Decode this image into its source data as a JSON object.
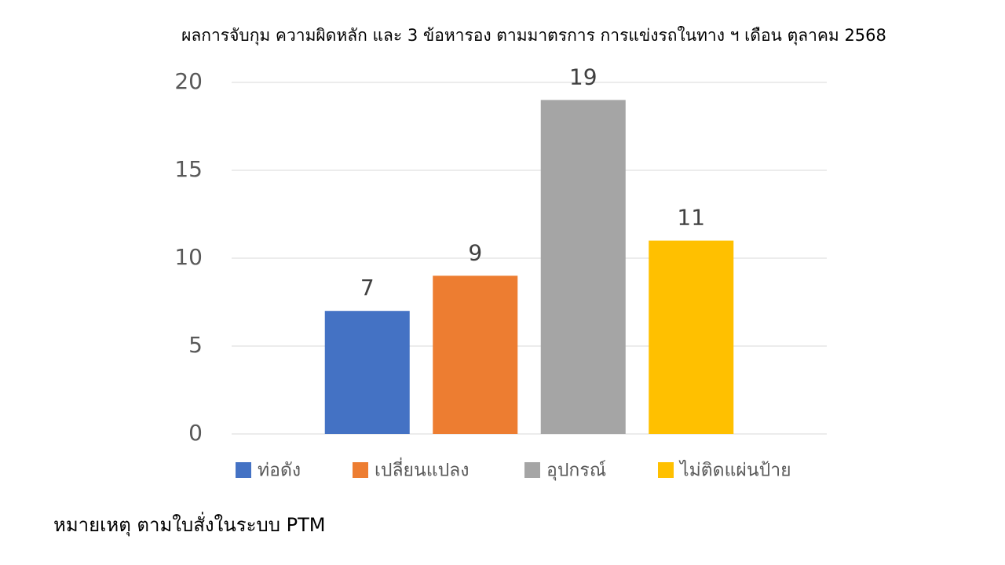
{
  "chart_data": {
    "type": "bar",
    "title": "ผลการจับกุม ความผิดหลัก และ 3 ข้อหารอง ตามมาตรการ การแข่งรถในทาง ฯ  เดือน  ตุลาคม  2568",
    "categories": [
      null
    ],
    "series": [
      {
        "name": "ท่อดัง",
        "color": "#4472c4",
        "values": [
          7
        ]
      },
      {
        "name": "เปลี่ยนแปลง",
        "color": "#ed7d31",
        "values": [
          9
        ]
      },
      {
        "name": "อุปกรณ์",
        "color": "#a5a5a5",
        "values": [
          19
        ]
      },
      {
        "name": "ไม่ติดแผ่นป้าย",
        "color": "#ffc000",
        "values": [
          11
        ]
      }
    ],
    "ylim": [
      0,
      20
    ],
    "yticks": [
      0,
      5,
      10,
      15,
      20
    ],
    "grid": true,
    "legend": "bottom",
    "note": "หมายเหตุ ตามใบสั่งในระบบ PTM"
  }
}
